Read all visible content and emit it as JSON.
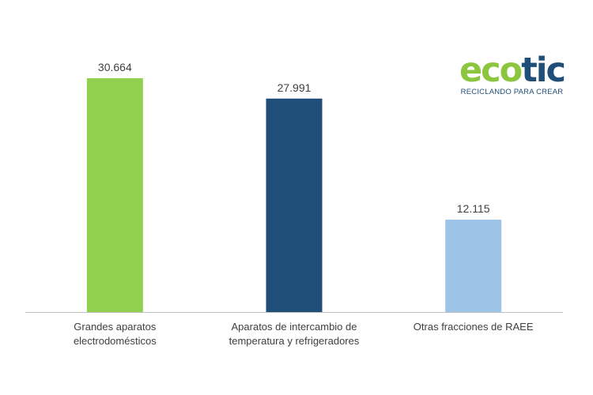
{
  "logo": {
    "part1": "eco",
    "part2": "tic",
    "tagline": "RECICLANDO PARA CREAR"
  },
  "chart_data": {
    "type": "bar",
    "categories": [
      [
        "Grandes aparatos",
        "electrodomésticos"
      ],
      [
        "Aparatos de intercambio de",
        "temperatura y refrigeradores"
      ],
      [
        "Otras fracciones de RAEE"
      ]
    ],
    "values": [
      30664,
      27991,
      12115
    ],
    "value_labels": [
      "30.664",
      "27.991",
      "12.115"
    ],
    "colors": [
      "#92d050",
      "#1f4e79",
      "#9dc3e6"
    ],
    "ylim": [
      0,
      30664
    ],
    "grid": false,
    "axis_color": "#bfbfbf"
  }
}
